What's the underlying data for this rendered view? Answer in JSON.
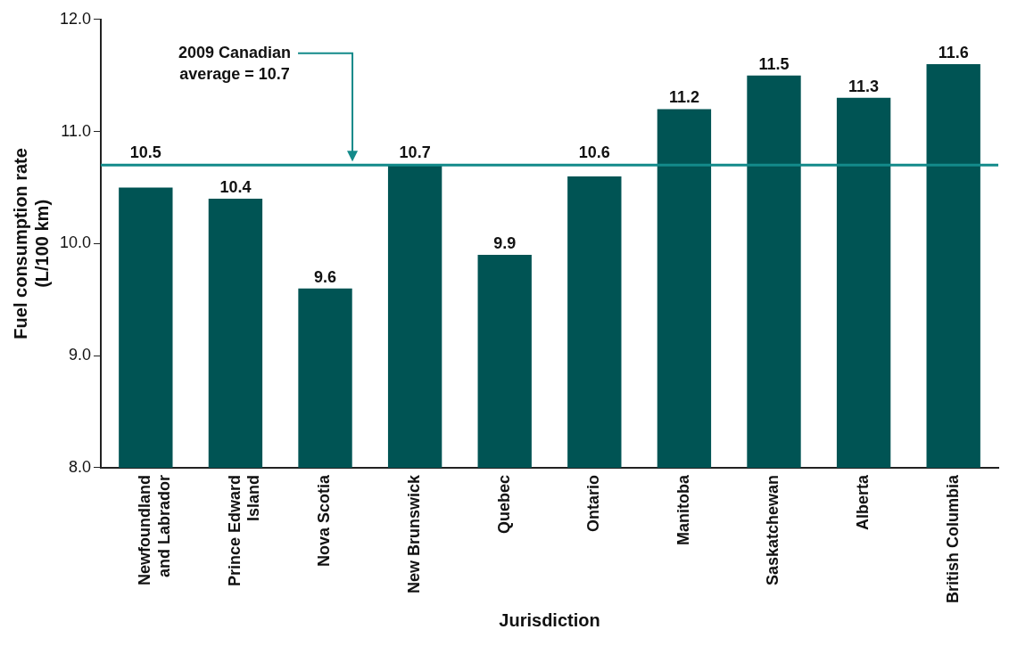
{
  "chart_data": {
    "type": "bar",
    "xlabel": "Jurisdiction",
    "ylabel": "Fuel consumption rate\n(L/100 km)",
    "categories": [
      "Newfoundland\nand Labrador",
      "Prince Edward\nIsland",
      "Nova Scotia",
      "New Brunswick",
      "Quebec",
      "Ontario",
      "Manitoba",
      "Saskatchewan",
      "Alberta",
      "British Columbia"
    ],
    "values": [
      10.5,
      10.4,
      9.6,
      10.7,
      9.9,
      10.6,
      11.2,
      11.5,
      11.3,
      11.6
    ],
    "color": "#005454",
    "ylim": [
      8,
      12
    ],
    "yticks": [
      {
        "value": 8,
        "label": "8.0"
      },
      {
        "value": 9,
        "label": "9.0"
      },
      {
        "value": 10,
        "label": "10.0"
      },
      {
        "value": 11,
        "label": "11.0"
      },
      {
        "value": 12,
        "label": "12.0"
      }
    ],
    "grid": false,
    "legend": false,
    "data_labels": true,
    "ref_lines": [
      {
        "axis": "y",
        "value": 10.7,
        "label": "2009 Canadian\naverage = 10.7",
        "color": "#138a8a"
      }
    ]
  }
}
